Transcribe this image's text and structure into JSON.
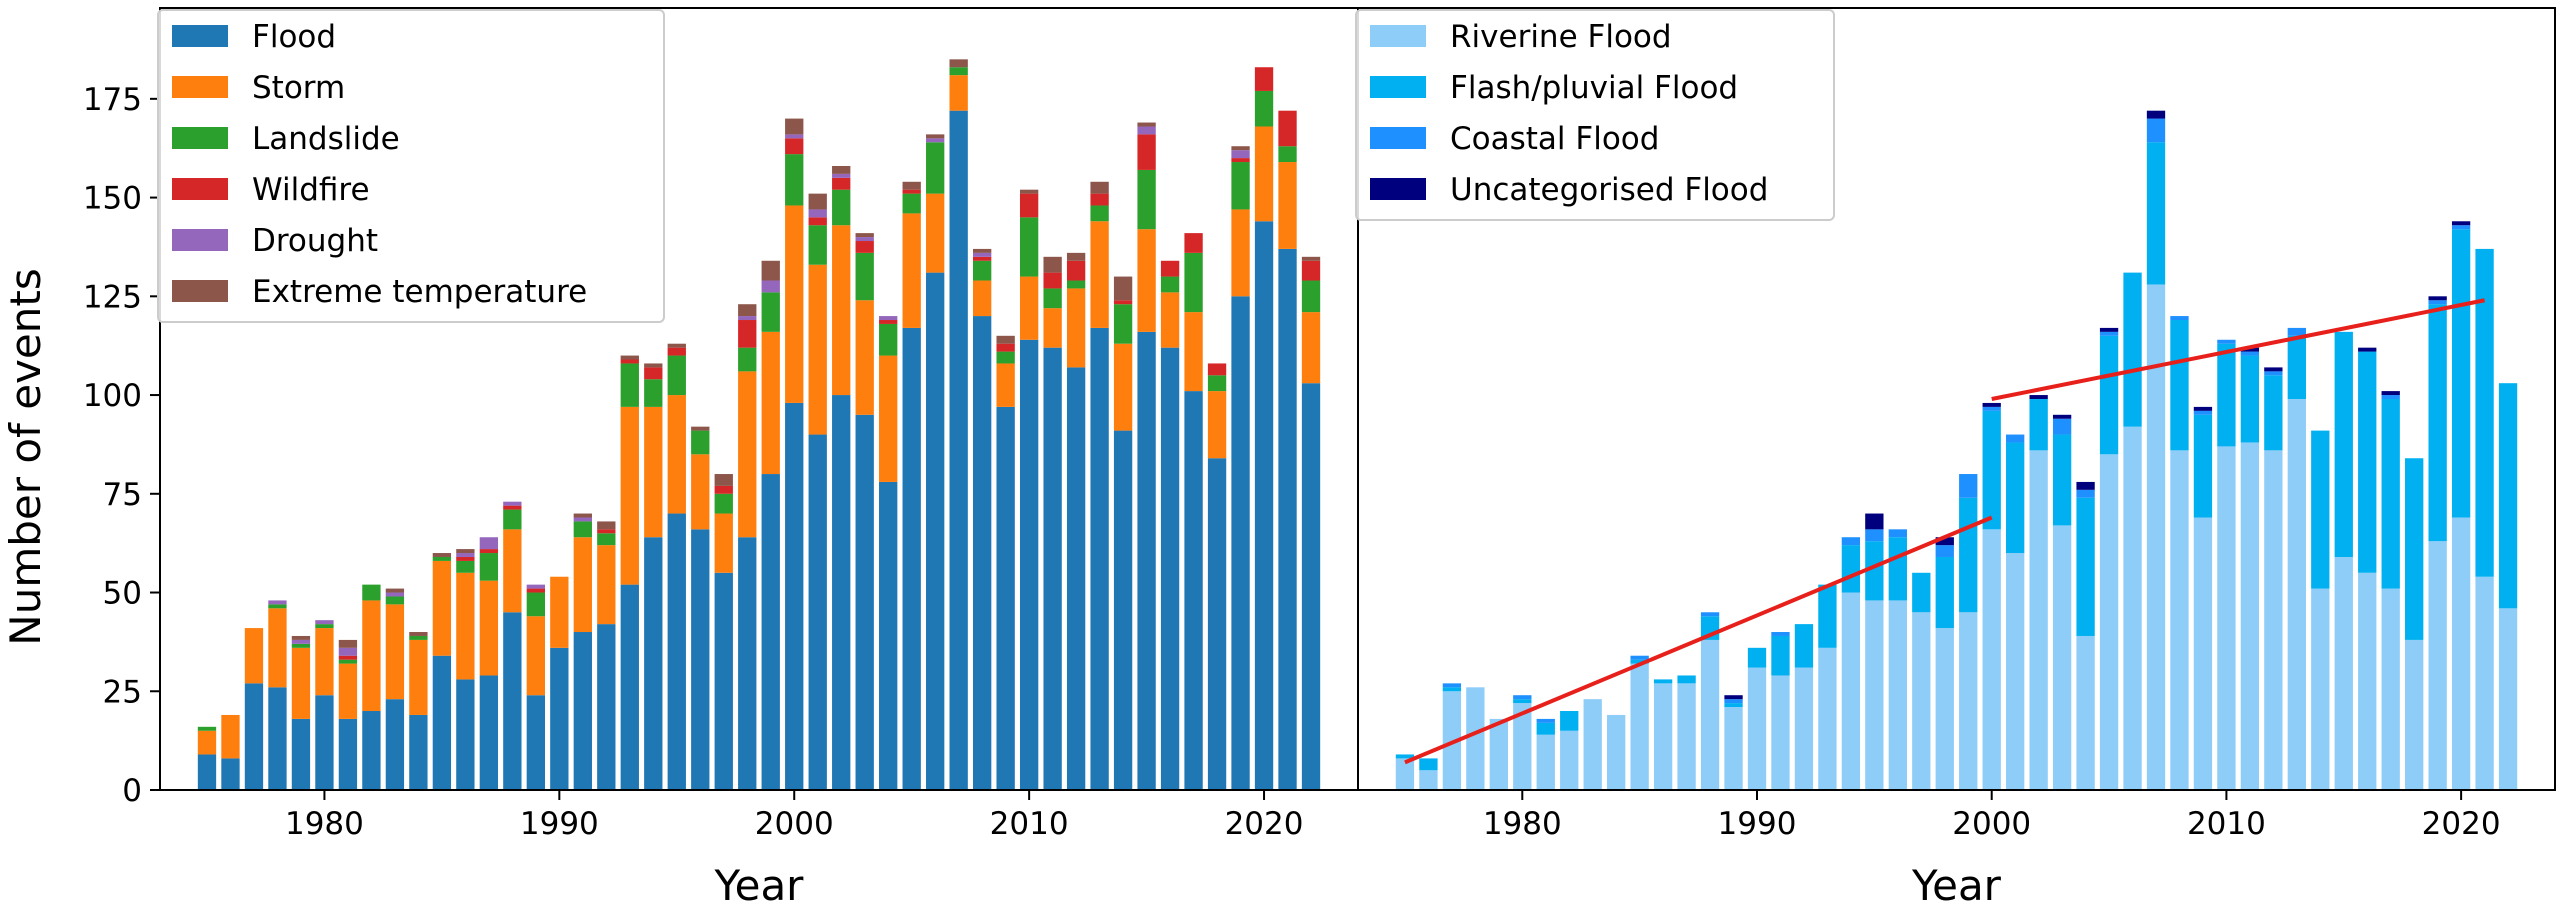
{
  "y_axis_title": "Number of events",
  "chart_data": [
    {
      "type": "bar",
      "stacked": true,
      "title": "",
      "xlabel": "Year",
      "ylabel": "Number of events",
      "xlim": [
        1973,
        2024
      ],
      "ylim": [
        0,
        198
      ],
      "xticks": [
        1980,
        1990,
        2000,
        2010,
        2020
      ],
      "yticks": [
        0,
        25,
        50,
        75,
        100,
        125,
        150,
        175
      ],
      "legend_position": "top-left",
      "grid": false,
      "years": [
        1975,
        1976,
        1977,
        1978,
        1979,
        1980,
        1981,
        1982,
        1983,
        1984,
        1985,
        1986,
        1987,
        1988,
        1989,
        1990,
        1991,
        1992,
        1993,
        1994,
        1995,
        1996,
        1997,
        1998,
        1999,
        2000,
        2001,
        2002,
        2003,
        2004,
        2005,
        2006,
        2007,
        2008,
        2009,
        2010,
        2011,
        2012,
        2013,
        2014,
        2015,
        2016,
        2017,
        2018,
        2019,
        2020,
        2021,
        2022
      ],
      "series": [
        {
          "name": "Flood",
          "color": "#1f77b4",
          "values": [
            9,
            8,
            27,
            26,
            18,
            24,
            18,
            20,
            23,
            19,
            34,
            28,
            29,
            45,
            24,
            36,
            40,
            42,
            52,
            64,
            70,
            66,
            55,
            64,
            80,
            98,
            90,
            100,
            95,
            78,
            117,
            131,
            172,
            120,
            97,
            114,
            112,
            107,
            117,
            91,
            116,
            112,
            101,
            84,
            125,
            144,
            137,
            103
          ]
        },
        {
          "name": "Storm",
          "color": "#ff7f0e",
          "values": [
            6,
            11,
            14,
            20,
            18,
            17,
            14,
            28,
            24,
            19,
            24,
            27,
            24,
            21,
            20,
            18,
            24,
            20,
            45,
            33,
            30,
            19,
            15,
            42,
            36,
            50,
            43,
            43,
            29,
            32,
            29,
            20,
            9,
            9,
            11,
            16,
            10,
            20,
            27,
            22,
            26,
            14,
            20,
            17,
            22,
            24,
            22,
            18
          ]
        },
        {
          "name": "Landslide",
          "color": "#2ca02c",
          "values": [
            1,
            0,
            0,
            1,
            1,
            1,
            1,
            4,
            2,
            1,
            1,
            3,
            7,
            5,
            6,
            0,
            4,
            3,
            11,
            7,
            10,
            6,
            5,
            6,
            10,
            13,
            10,
            9,
            12,
            8,
            5,
            13,
            2,
            5,
            3,
            15,
            5,
            2,
            4,
            10,
            15,
            4,
            15,
            4,
            12,
            9,
            4,
            8
          ]
        },
        {
          "name": "Wildfire",
          "color": "#d62728",
          "values": [
            0,
            0,
            0,
            0,
            0,
            0,
            1,
            0,
            0,
            0,
            0,
            1,
            1,
            1,
            1,
            0,
            0,
            1,
            1,
            3,
            2,
            0,
            2,
            7,
            0,
            4,
            2,
            3,
            3,
            1,
            1,
            0,
            0,
            1,
            2,
            6,
            4,
            5,
            3,
            1,
            9,
            4,
            5,
            3,
            1,
            6,
            9,
            5
          ]
        },
        {
          "name": "Drought",
          "color": "#9467bd",
          "values": [
            0,
            0,
            0,
            1,
            1,
            1,
            2,
            0,
            1,
            0,
            0,
            1,
            3,
            1,
            1,
            0,
            1,
            0,
            0,
            0,
            0,
            0,
            0,
            1,
            3,
            1,
            2,
            1,
            1,
            1,
            0,
            1,
            0,
            1,
            0,
            0,
            0,
            0,
            0,
            0,
            2,
            0,
            0,
            0,
            2,
            0,
            0,
            0
          ]
        },
        {
          "name": "Extreme temperature",
          "color": "#8c564b",
          "values": [
            0,
            0,
            0,
            0,
            1,
            0,
            2,
            0,
            1,
            1,
            1,
            1,
            0,
            0,
            0,
            0,
            1,
            2,
            1,
            1,
            1,
            1,
            3,
            3,
            5,
            4,
            4,
            2,
            1,
            0,
            2,
            1,
            2,
            1,
            2,
            1,
            4,
            2,
            3,
            6,
            1,
            0,
            0,
            0,
            1,
            0,
            0,
            1
          ]
        }
      ]
    },
    {
      "type": "bar",
      "stacked": true,
      "title": "",
      "xlabel": "Year",
      "ylabel": "",
      "xlim": [
        1973,
        2024
      ],
      "ylim": [
        0,
        198
      ],
      "xticks": [
        1980,
        1990,
        2000,
        2010,
        2020
      ],
      "yticks": [],
      "legend_position": "top-left",
      "grid": false,
      "years": [
        1975,
        1976,
        1977,
        1978,
        1979,
        1980,
        1981,
        1982,
        1983,
        1984,
        1985,
        1986,
        1987,
        1988,
        1989,
        1990,
        1991,
        1992,
        1993,
        1994,
        1995,
        1996,
        1997,
        1998,
        1999,
        2000,
        2001,
        2002,
        2003,
        2004,
        2005,
        2006,
        2007,
        2008,
        2009,
        2010,
        2011,
        2012,
        2013,
        2014,
        2015,
        2016,
        2017,
        2018,
        2019,
        2020,
        2021,
        2022
      ],
      "series": [
        {
          "name": "Riverine Flood",
          "color": "#8ecdf7",
          "values": [
            8,
            5,
            25,
            26,
            18,
            22,
            14,
            15,
            23,
            19,
            32,
            27,
            27,
            38,
            21,
            31,
            29,
            31,
            36,
            50,
            48,
            48,
            45,
            41,
            45,
            66,
            60,
            86,
            67,
            39,
            85,
            92,
            128,
            86,
            69,
            87,
            88,
            86,
            99,
            51,
            59,
            55,
            51,
            38,
            63,
            69,
            54,
            46
          ]
        },
        {
          "name": "Flash/pluvial Flood",
          "color": "#00b0f0",
          "values": [
            1,
            3,
            1,
            0,
            0,
            1,
            3,
            5,
            0,
            0,
            1,
            1,
            2,
            6,
            1,
            5,
            10,
            11,
            16,
            12,
            15,
            16,
            10,
            18,
            29,
            30,
            28,
            13,
            23,
            35,
            30,
            39,
            36,
            33,
            26,
            26,
            22,
            19,
            16,
            40,
            57,
            56,
            48,
            46,
            60,
            73,
            83,
            57
          ]
        },
        {
          "name": "Coastal Flood",
          "color": "#1e90ff",
          "values": [
            0,
            0,
            1,
            0,
            0,
            1,
            1,
            0,
            0,
            0,
            1,
            0,
            0,
            1,
            1,
            0,
            1,
            0,
            0,
            2,
            3,
            2,
            0,
            3,
            6,
            1,
            2,
            0,
            4,
            2,
            1,
            0,
            6,
            1,
            1,
            1,
            1,
            1,
            2,
            0,
            0,
            0,
            1,
            0,
            1,
            1,
            0,
            0
          ]
        },
        {
          "name": "Uncategorised Flood",
          "color": "#00007f",
          "values": [
            0,
            0,
            0,
            0,
            0,
            0,
            0,
            0,
            0,
            0,
            0,
            0,
            0,
            0,
            1,
            0,
            0,
            0,
            0,
            0,
            4,
            0,
            0,
            2,
            0,
            1,
            0,
            1,
            1,
            2,
            1,
            0,
            2,
            0,
            1,
            0,
            1,
            1,
            0,
            0,
            0,
            1,
            1,
            0,
            1,
            1,
            0,
            0
          ]
        }
      ],
      "trend_lines": [
        {
          "color": "#e8201b",
          "x": [
            1975,
            2000
          ],
          "y": [
            7,
            69
          ]
        },
        {
          "color": "#e8201b",
          "x": [
            2000,
            2021
          ],
          "y": [
            99,
            124
          ]
        }
      ]
    }
  ]
}
